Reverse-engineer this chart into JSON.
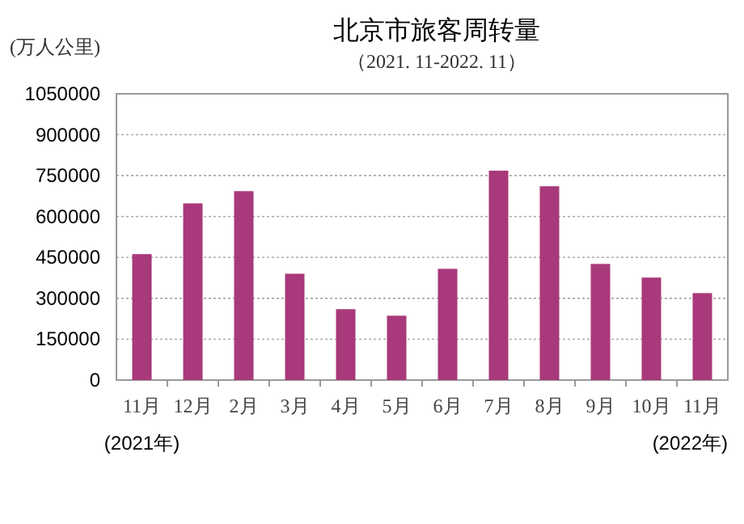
{
  "chart_data": {
    "type": "bar",
    "title": "北京市旅客周转量",
    "subtitle": "（2021. 11-2022. 11）",
    "ylabel": "(万人公里)",
    "categories": [
      "11月",
      "12月",
      "2月",
      "3月",
      "4月",
      "5月",
      "6月",
      "7月",
      "8月",
      "9月",
      "10月",
      "11月"
    ],
    "values": [
      462000,
      648000,
      693000,
      390000,
      260000,
      236000,
      408000,
      768000,
      711000,
      426000,
      376000,
      319000
    ],
    "color": "#a8397a",
    "ylim": [
      0,
      1050000
    ],
    "yticks": [
      0,
      150000,
      300000,
      450000,
      600000,
      750000,
      900000,
      1050000
    ],
    "grid": "y",
    "annotations": [
      "(2021年)",
      "(2022年)"
    ]
  }
}
